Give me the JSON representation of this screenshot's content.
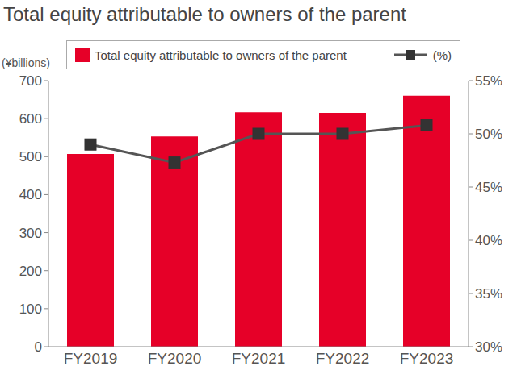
{
  "chart_data": {
    "type": "bar",
    "title": "Total equity attributable to owners of the parent",
    "y_label": "(¥billions)",
    "categories": [
      "FY2019",
      "FY2020",
      "FY2021",
      "FY2022",
      "FY2023"
    ],
    "series": [
      {
        "name": "Total equity attributable to owners of the parent",
        "type": "bar",
        "color": "#e60028",
        "values": [
          507,
          553,
          617,
          615,
          660
        ]
      },
      {
        "name": "(%)",
        "type": "line",
        "axis": "y2",
        "color": "#555555",
        "marker": "square",
        "line_style": "solid",
        "values": [
          49.0,
          47.3,
          50.0,
          50.0,
          50.8
        ]
      }
    ],
    "ylim": [
      0,
      700
    ],
    "yticks": [
      0,
      100,
      200,
      300,
      400,
      500,
      600,
      700
    ],
    "y2lim": [
      30,
      55
    ],
    "y2ticks": [
      {
        "value": 30,
        "label": "30%"
      },
      {
        "value": 35,
        "label": "35%"
      },
      {
        "value": 40,
        "label": "40%"
      },
      {
        "value": 45,
        "label": "45%"
      },
      {
        "value": 50,
        "label": "50%"
      },
      {
        "value": 55,
        "label": "55%"
      }
    ],
    "legend": "top"
  }
}
